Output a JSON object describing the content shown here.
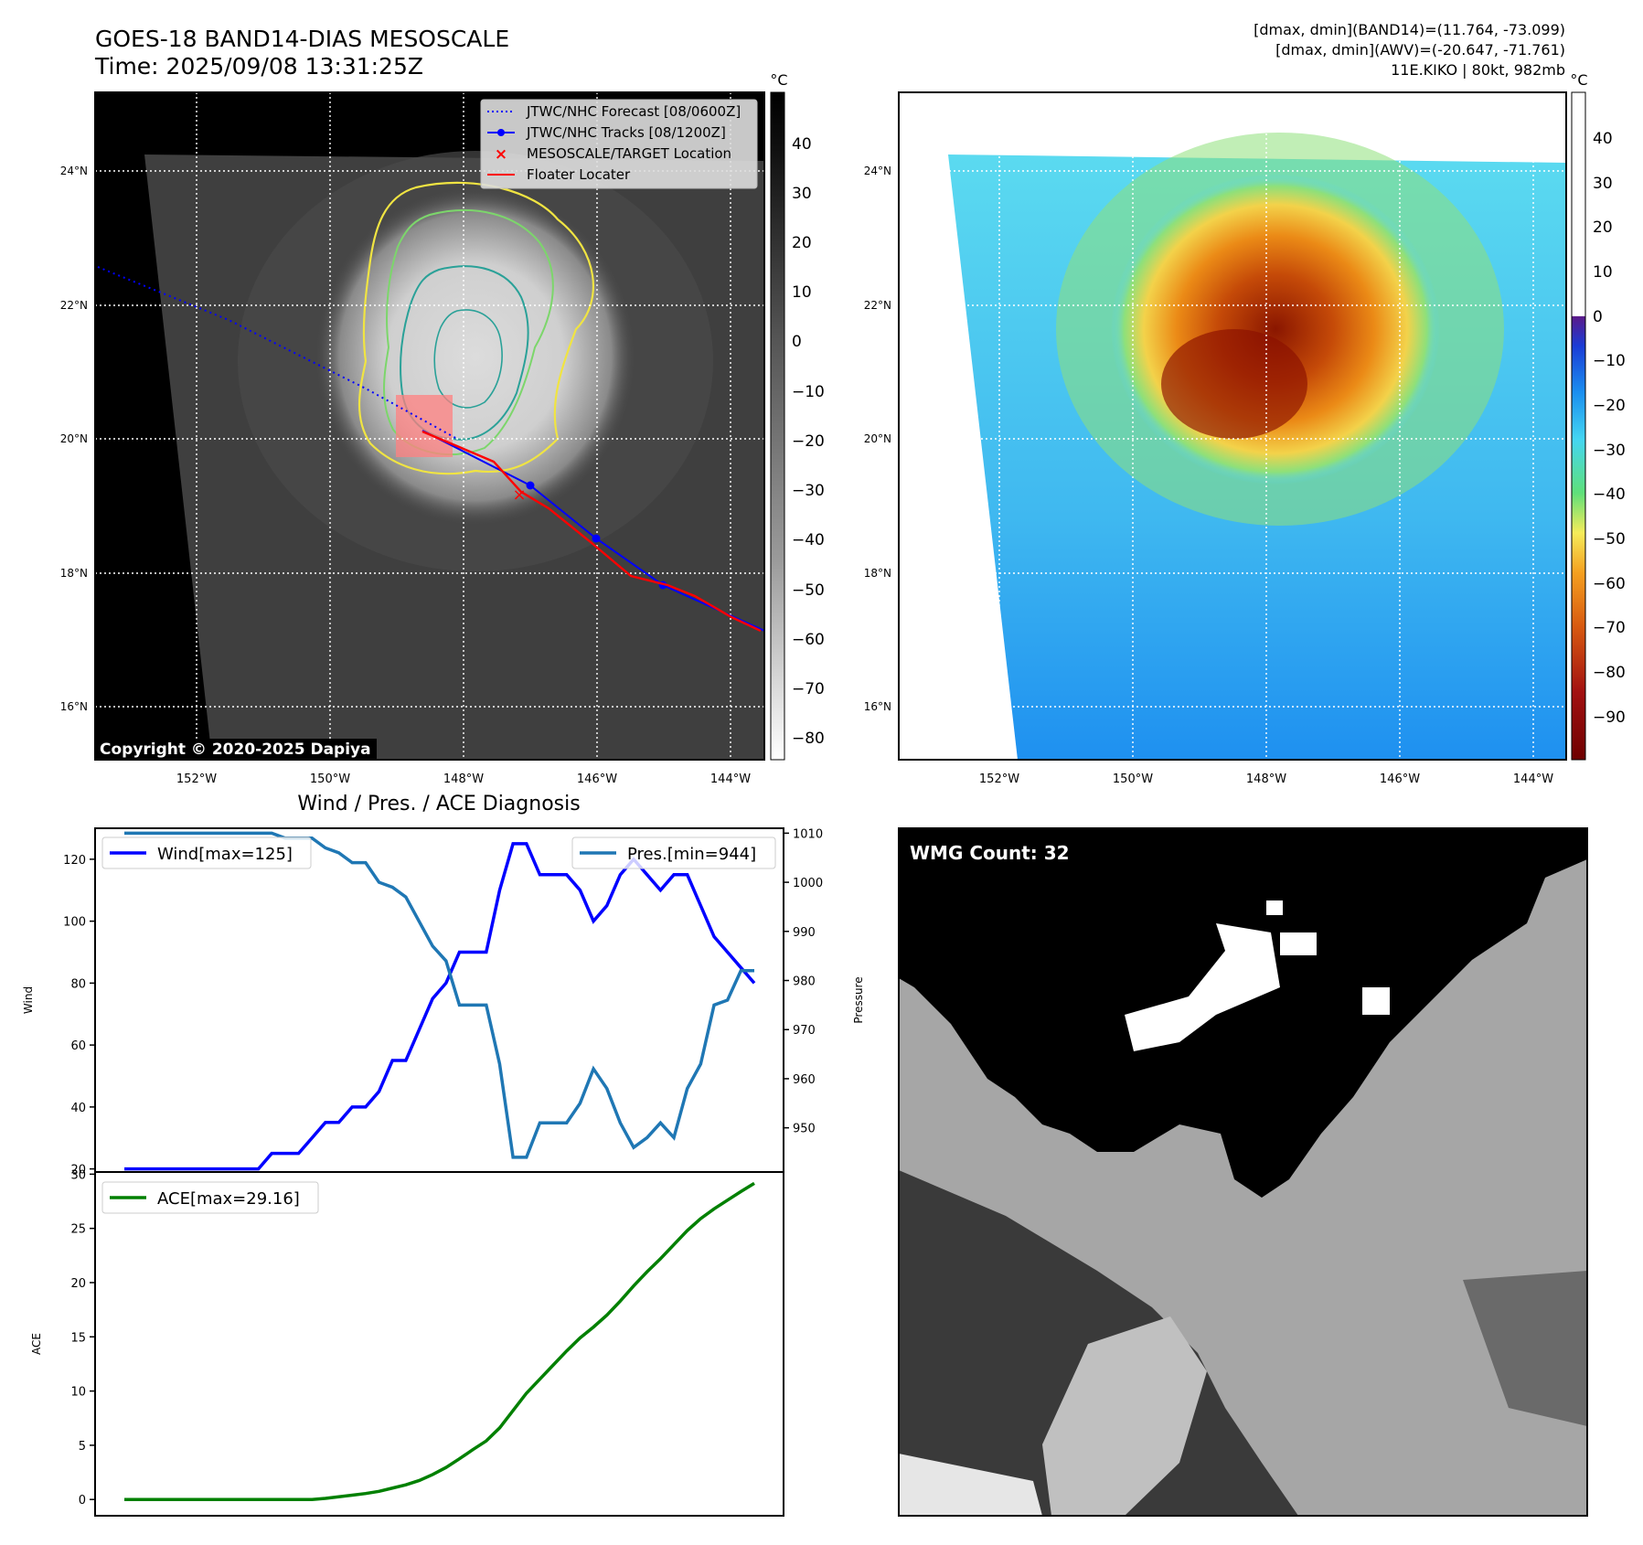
{
  "header": {
    "title_line1": "GOES-18 BAND14-DIAS MESOSCALE",
    "title_line2": "Time: 2025/09/08 13:31:25Z",
    "info_line1": "[dmax, dmin](BAND14)=(11.764, -73.099)",
    "info_line2": "[dmax, dmin](AWV)=(-20.647, -71.761)",
    "info_line3": "11E.KIKO | 80kt, 982mb"
  },
  "map_axes": {
    "lat_labels": [
      "24°N",
      "22°N",
      "20°N",
      "18°N",
      "16°N"
    ],
    "lon_labels": [
      "152°W",
      "150°W",
      "148°W",
      "146°W",
      "144°W"
    ]
  },
  "ir_panel": {
    "colorbar_unit": "°C",
    "colorbar_ticks": [
      "40",
      "30",
      "20",
      "10",
      "0",
      "−10",
      "−20",
      "−30",
      "−40",
      "−50",
      "−60",
      "−70",
      "−80"
    ],
    "legend": [
      {
        "label": "JTWC/NHC Forecast [08/0600Z]",
        "color": "#0000ff"
      },
      {
        "label": "JTWC/NHC Tracks [08/1200Z]",
        "color": "#0000ff"
      },
      {
        "label": "MESOSCALE/TARGET Location",
        "color": "#ff0000"
      },
      {
        "label": "Floater Locater",
        "color": "#ff0000"
      }
    ],
    "copyright": "Copyright © 2020-2025 Dapiya"
  },
  "wv_panel": {
    "colorbar_unit": "°C",
    "colorbar_ticks": [
      "40",
      "30",
      "20",
      "10",
      "0",
      "−10",
      "−20",
      "−30",
      "−40",
      "−50",
      "−60",
      "−70",
      "−80",
      "−90"
    ]
  },
  "diagnosis": {
    "title": "Wind / Pres. / ACE Diagnosis",
    "wind_ylabel": "Wind",
    "pressure_ylabel": "Pressure",
    "ace_ylabel": "ACE",
    "wind_ticks": [
      "120",
      "100",
      "80",
      "60",
      "40",
      "20"
    ],
    "pressure_ticks": [
      "1010",
      "1000",
      "990",
      "980",
      "970",
      "960",
      "950"
    ],
    "ace_ticks": [
      "30",
      "25",
      "20",
      "15",
      "10",
      "5",
      "0"
    ],
    "wind_legend": "Wind[max=125]",
    "pres_legend": "Pres.[min=944]",
    "ace_legend": "ACE[max=29.16]"
  },
  "wmg_panel": {
    "label": "WMG Count: 32"
  },
  "chart_data": [
    {
      "type": "line",
      "title": "Wind / Pres. / ACE Diagnosis",
      "x": [
        0,
        1,
        2,
        3,
        4,
        5,
        6,
        7,
        8,
        9,
        10,
        11,
        12,
        13,
        14,
        15,
        16,
        17,
        18,
        19,
        20,
        21,
        22,
        23,
        24,
        25,
        26,
        27,
        28,
        29,
        30,
        31,
        32,
        33,
        34,
        35,
        36,
        37,
        38,
        39,
        40,
        41,
        42,
        43,
        44,
        45,
        46,
        47
      ],
      "series": [
        {
          "name": "Wind[max=125]",
          "color": "#0000ff",
          "axis": "left",
          "values": [
            20,
            20,
            20,
            20,
            20,
            20,
            20,
            20,
            20,
            20,
            20,
            25,
            25,
            25,
            30,
            35,
            35,
            40,
            40,
            45,
            55,
            55,
            65,
            75,
            80,
            90,
            90,
            90,
            110,
            125,
            125,
            115,
            115,
            115,
            110,
            100,
            105,
            115,
            120,
            115,
            110,
            115,
            115,
            105,
            95,
            90,
            85,
            80
          ]
        },
        {
          "name": "Pres.[min=944]",
          "color": "#1f77b4",
          "axis": "right",
          "values": [
            1010,
            1010,
            1010,
            1010,
            1010,
            1010,
            1010,
            1010,
            1010,
            1010,
            1010,
            1010,
            1009,
            1009,
            1009,
            1007,
            1006,
            1004,
            1004,
            1000,
            999,
            997,
            992,
            987,
            984,
            975,
            975,
            975,
            963,
            944,
            944,
            951,
            951,
            951,
            955,
            962,
            958,
            951,
            946,
            948,
            951,
            948,
            958,
            963,
            975,
            976,
            982,
            982
          ]
        }
      ],
      "ylim_left": [
        19,
        130
      ],
      "ylim_right": [
        941,
        1011
      ],
      "xlabel": "",
      "ylabel": "Wind",
      "ylabel_right": "Pressure"
    },
    {
      "type": "line",
      "x": [
        0,
        1,
        2,
        3,
        4,
        5,
        6,
        7,
        8,
        9,
        10,
        11,
        12,
        13,
        14,
        15,
        16,
        17,
        18,
        19,
        20,
        21,
        22,
        23,
        24,
        25,
        26,
        27,
        28,
        29,
        30,
        31,
        32,
        33,
        34,
        35,
        36,
        37,
        38,
        39,
        40,
        41,
        42,
        43,
        44,
        45,
        46,
        47
      ],
      "series": [
        {
          "name": "ACE[max=29.16]",
          "color": "#008000",
          "values": [
            0,
            0,
            0,
            0,
            0,
            0,
            0,
            0,
            0,
            0,
            0,
            0,
            0,
            0,
            0,
            0.1,
            0.25,
            0.4,
            0.55,
            0.75,
            1.05,
            1.35,
            1.75,
            2.3,
            2.95,
            3.75,
            4.6,
            5.4,
            6.6,
            8.2,
            9.8,
            11.1,
            12.4,
            13.7,
            14.9,
            15.9,
            17.0,
            18.3,
            19.7,
            21.0,
            22.2,
            23.5,
            24.8,
            25.9,
            26.8,
            27.6,
            28.4,
            29.16
          ]
        }
      ],
      "ylim": [
        -1.5,
        30.2
      ],
      "xlabel": "",
      "ylabel": "ACE"
    }
  ]
}
